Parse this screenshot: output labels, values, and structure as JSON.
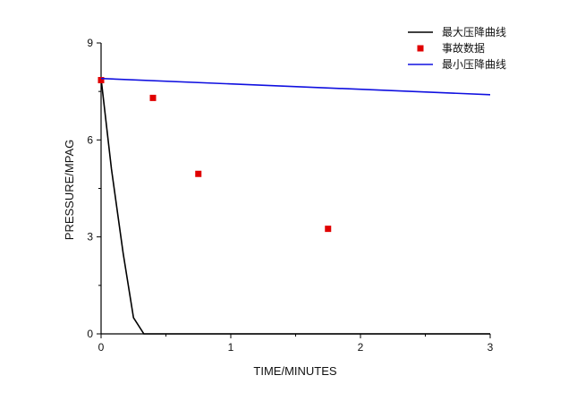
{
  "chart_data": {
    "type": "line",
    "title": "",
    "xlabel": "TIME/MINUTES",
    "ylabel": "PRESSURE/MPAG",
    "xlim": [
      0,
      3
    ],
    "ylim": [
      0,
      9
    ],
    "xticks": [
      0,
      1,
      2,
      3
    ],
    "yticks": [
      0,
      3,
      6,
      9
    ],
    "grid": false,
    "legend_position": "top-right",
    "series": [
      {
        "name": "最大压降曲线",
        "kind": "line",
        "color": "#000000",
        "x": [
          0,
          0.08,
          0.17,
          0.25,
          0.33,
          3.0
        ],
        "y": [
          7.9,
          5.1,
          2.5,
          0.5,
          0.0,
          0.0
        ]
      },
      {
        "name": "事故数据",
        "kind": "scatter",
        "color": "#e00000",
        "x": [
          0,
          0.4,
          0.75,
          1.75
        ],
        "y": [
          7.85,
          7.3,
          4.95,
          3.25
        ]
      },
      {
        "name": "最小压降曲线",
        "kind": "line",
        "color": "#1010e0",
        "x": [
          0,
          3.0
        ],
        "y": [
          7.9,
          7.4
        ]
      }
    ]
  }
}
